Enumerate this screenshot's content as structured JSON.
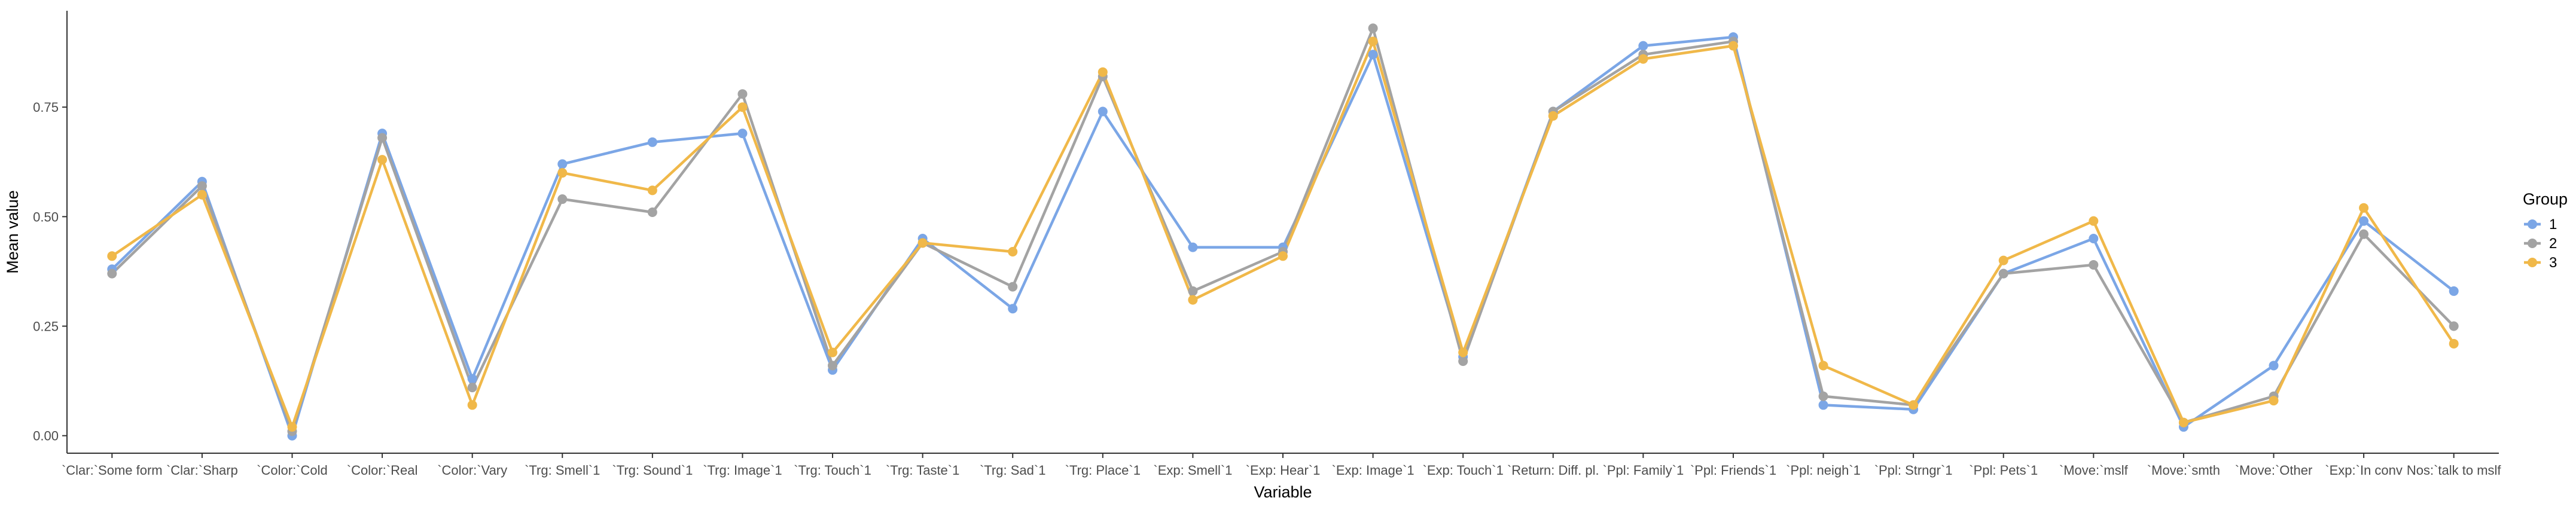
{
  "chart_data": {
    "type": "line",
    "title": "",
    "xlabel": "Variable",
    "ylabel": "Mean value",
    "ylim": [
      -0.04,
      0.97
    ],
    "yticks": [
      0.0,
      0.25,
      0.5,
      0.75
    ],
    "ytick_labels": [
      "0.00",
      "0.25",
      "0.50",
      "0.75"
    ],
    "grid": false,
    "legend": {
      "title": "Group",
      "position": "right"
    },
    "categories": [
      "`Clar:`Some form",
      "`Clar:`Sharp",
      "`Color:`Cold",
      "`Color:`Real",
      "`Color:`Vary",
      "`Trg: Smell`1",
      "`Trg: Sound`1",
      "`Trg: Image`1",
      "`Trg: Touch`1",
      "`Trg: Taste`1",
      "`Trg: Sad`1",
      "`Trg: Place`1",
      "`Exp: Smell`1",
      "`Exp: Hear`1",
      "`Exp: Image`1",
      "`Exp: Touch`1",
      "`Return: Diff. pl.",
      "`Ppl: Family`1",
      "`Ppl: Friends`1",
      "`Ppl: neigh`1",
      "`Ppl: Strngr`1",
      "`Ppl: Pets`1",
      "`Move:`mslf",
      "`Move:`smth",
      "`Move:`Other",
      "`Exp:`In conv",
      "Nos:`talk to mslf"
    ],
    "series": [
      {
        "name": "1",
        "color": "#7ba6e6",
        "values": [
          0.38,
          0.58,
          0.0,
          0.69,
          0.13,
          0.62,
          0.67,
          0.69,
          0.15,
          0.45,
          0.29,
          0.74,
          0.43,
          0.43,
          0.87,
          0.18,
          0.74,
          0.89,
          0.91,
          0.07,
          0.06,
          0.37,
          0.45,
          0.02,
          0.16,
          0.49,
          0.33
        ]
      },
      {
        "name": "2",
        "color": "#a3a3a3",
        "values": [
          0.37,
          0.57,
          0.01,
          0.68,
          0.11,
          0.54,
          0.51,
          0.78,
          0.16,
          0.44,
          0.34,
          0.82,
          0.33,
          0.42,
          0.93,
          0.17,
          0.74,
          0.87,
          0.9,
          0.09,
          0.07,
          0.37,
          0.39,
          0.03,
          0.09,
          0.46,
          0.25
        ]
      },
      {
        "name": "3",
        "color": "#f0b849",
        "values": [
          0.41,
          0.55,
          0.02,
          0.63,
          0.07,
          0.6,
          0.56,
          0.75,
          0.19,
          0.44,
          0.42,
          0.83,
          0.31,
          0.41,
          0.9,
          0.19,
          0.73,
          0.86,
          0.89,
          0.16,
          0.07,
          0.4,
          0.49,
          0.03,
          0.08,
          0.52,
          0.21
        ]
      }
    ]
  }
}
